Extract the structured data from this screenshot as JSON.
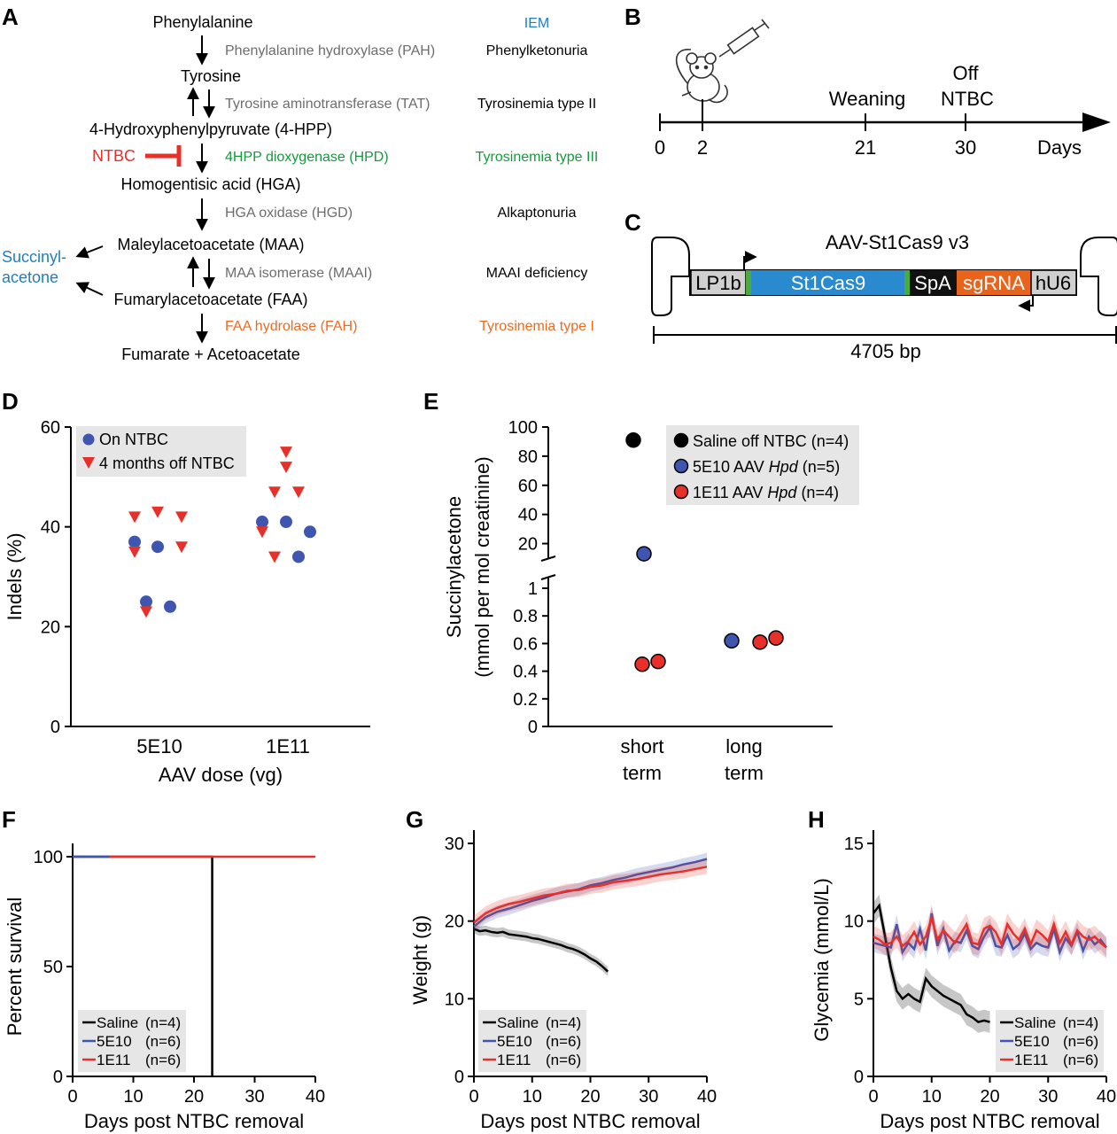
{
  "colors": {
    "blue": "#3f56b0",
    "red": "#e8302a",
    "black": "#000000",
    "gray_text": "#6d6d6d",
    "green": "#169a3c",
    "orange": "#ef6a1f",
    "iem_blue": "#1f7fc1",
    "st1cas9_blue": "#2a8ad0",
    "sgrna_orange": "#e8641c",
    "legend_bg": "#e6e6e6"
  },
  "panels": {
    "A": "A",
    "B": "B",
    "C": "C",
    "D": "D",
    "E": "E",
    "F": "F",
    "G": "G",
    "H": "H"
  },
  "pathway": {
    "iem_header": "IEM",
    "metabolites": {
      "phe": "Phenylalanine",
      "tyr": "Tyrosine",
      "hpp": "4-Hydroxyphenylpyruvate (4-HPP)",
      "hga": "Homogentisic acid (HGA)",
      "maa": "Maleylacetoacetate (MAA)",
      "faa": "Fumarylacetoacetate (FAA)",
      "fum": "Fumarate + Acetoacetate"
    },
    "enzymes": {
      "pah": "Phenylalanine hydroxylase (PAH)",
      "tat": "Tyrosine aminotransferase (TAT)",
      "hpd": "4HPP dioxygenase (HPD)",
      "hgd": "HGA oxidase (HGD)",
      "maai": "MAA isomerase (MAAI)",
      "fah": "FAA hydrolase (FAH)"
    },
    "diseases": {
      "pku": "Phenylketonuria",
      "tyr2": "Tyrosinemia type II",
      "tyr3": "Tyrosinemia type III",
      "alk": "Alkaptonuria",
      "maai": "MAAI deficiency",
      "tyr1": "Tyrosinemia type I"
    },
    "ntbc": "NTBC",
    "succinyl_1": "Succinyl-",
    "succinyl_2": "acetone"
  },
  "timeline": {
    "days_label": "Days",
    "ticks": [
      "0",
      "2",
      "21",
      "30"
    ],
    "weaning": "Weaning",
    "off_1": "Off",
    "off_2": "NTBC"
  },
  "construct": {
    "title": "AAV-St1Cas9 v3",
    "segments": {
      "lp1b": "LP1b",
      "st1cas9": "St1Cas9",
      "spa": "SpA",
      "sgrna": "sgRNA",
      "hu6": "hU6"
    },
    "length": "4705 bp"
  },
  "chart_data": [
    {
      "panel": "D",
      "type": "scatter",
      "xlabel": "AAV dose (vg)",
      "ylabel": "Indels (%)",
      "categories": [
        "5E10",
        "1E11"
      ],
      "ylim": [
        0,
        60
      ],
      "yticks": [
        "0",
        "20",
        "40",
        "60"
      ],
      "legend_position": "top-left",
      "series": [
        {
          "name": "On NTBC",
          "marker": "circle",
          "values": [
            [
              37,
              36,
              25,
              24
            ],
            [
              41,
              41,
              39,
              34
            ]
          ]
        },
        {
          "name": "4 months off NTBC",
          "marker": "triangle-down",
          "values": [
            [
              42,
              43,
              42,
              35,
              36,
              23
            ],
            [
              55,
              52,
              47,
              47,
              39,
              34
            ]
          ]
        }
      ]
    },
    {
      "panel": "E",
      "type": "scatter",
      "ylabel": "Succinylacetone",
      "ylabel2": "(mmol per mol creatinine)",
      "categories": [
        [
          "short",
          "term"
        ],
        [
          "long",
          "term"
        ]
      ],
      "y_axis_broken": true,
      "lower_ylim": [
        0,
        1
      ],
      "upper_ylim": [
        10,
        100
      ],
      "lower_yticks": [
        "0",
        "0.2",
        "0.4",
        "0.6",
        "0.8",
        "1"
      ],
      "upper_yticks": [
        "20",
        "40",
        "60",
        "80",
        "100"
      ],
      "legend_position": "top-right",
      "series": [
        {
          "name": "Saline off NTBC (n=4)",
          "label_prefix": "Saline off NTBC ",
          "label_suffix": "(n=4)",
          "italic": "",
          "color": "black",
          "values": [
            [
              91
            ],
            []
          ]
        },
        {
          "name": "5E10 AAV Hpd (n=5)",
          "label_prefix": "5E10 AAV ",
          "italic": "Hpd",
          "label_suffix": " (n=5)",
          "color": "blue",
          "values": [
            [
              13
            ],
            [
              0.62
            ]
          ]
        },
        {
          "name": "1E11 AAV Hpd (n=4)",
          "label_prefix": "1E11 AAV ",
          "italic": "Hpd",
          "label_suffix": " (n=4)",
          "color": "red",
          "values": [
            [
              0.45,
              0.47
            ],
            [
              0.61,
              0.64
            ]
          ]
        }
      ]
    },
    {
      "panel": "F",
      "type": "line",
      "xlabel": "Days post NTBC removal",
      "ylabel": "Percent survival",
      "xlim": [
        0,
        40
      ],
      "ylim": [
        0,
        100
      ],
      "xticks": [
        "0",
        "10",
        "20",
        "30",
        "40"
      ],
      "yticks": [
        "0",
        "50",
        "100"
      ],
      "legend_position": "bottom-left",
      "series": [
        {
          "name": "Saline",
          "n": "(n=4)",
          "color": "black",
          "x": [
            0,
            23,
            23
          ],
          "y": [
            100,
            100,
            0
          ]
        },
        {
          "name": "5E10",
          "n": "(n=6)",
          "color": "blue",
          "x": [
            0,
            6
          ],
          "y": [
            100,
            100
          ]
        },
        {
          "name": "1E11",
          "n": "(n=6)",
          "color": "red",
          "x": [
            6,
            40
          ],
          "y": [
            100,
            100
          ]
        }
      ]
    },
    {
      "panel": "G",
      "type": "line",
      "xlabel": "Days post NTBC removal",
      "ylabel": "Weight (g)",
      "xlim": [
        0,
        40
      ],
      "ylim": [
        0,
        30
      ],
      "xticks": [
        "0",
        "10",
        "20",
        "30",
        "40"
      ],
      "yticks": [
        "0",
        "10",
        "20",
        "30"
      ],
      "legend_position": "bottom-left",
      "series": [
        {
          "name": "Saline",
          "n": "(n=4)",
          "color": "black",
          "band": 0.6,
          "x": [
            0,
            1,
            2,
            3,
            4,
            5,
            6,
            7,
            8,
            9,
            10,
            11,
            12,
            13,
            14,
            15,
            16,
            17,
            18,
            19,
            20,
            21,
            22,
            23
          ],
          "y": [
            19.0,
            18.7,
            18.8,
            18.6,
            18.5,
            18.6,
            18.3,
            18.2,
            18.1,
            18.0,
            17.8,
            17.7,
            17.5,
            17.3,
            17.1,
            16.9,
            16.6,
            16.4,
            16.1,
            15.7,
            15.2,
            14.8,
            14.2,
            13.5
          ]
        },
        {
          "name": "5E10",
          "n": "(n=6)",
          "color": "blue",
          "band": 0.8,
          "x": [
            0,
            2,
            4,
            6,
            8,
            10,
            12,
            14,
            16,
            18,
            20,
            22,
            24,
            26,
            28,
            30,
            32,
            34,
            36,
            38,
            40
          ],
          "y": [
            19.3,
            20.5,
            21.2,
            21.6,
            22.1,
            22.6,
            23.0,
            23.5,
            23.8,
            24.1,
            24.6,
            24.9,
            25.3,
            25.6,
            26.0,
            26.3,
            26.6,
            26.9,
            27.3,
            27.6,
            28.0
          ]
        },
        {
          "name": "1E11",
          "n": "(n=6)",
          "color": "red",
          "band": 0.9,
          "x": [
            0,
            2,
            4,
            6,
            8,
            10,
            12,
            14,
            16,
            18,
            20,
            22,
            24,
            26,
            28,
            30,
            32,
            34,
            36,
            38,
            40
          ],
          "y": [
            19.8,
            21.0,
            21.7,
            22.2,
            22.5,
            22.9,
            23.3,
            23.5,
            23.9,
            24.0,
            24.4,
            24.6,
            25.0,
            25.2,
            25.4,
            25.7,
            26.0,
            26.2,
            26.4,
            26.7,
            27.0
          ]
        }
      ]
    },
    {
      "panel": "H",
      "type": "line",
      "xlabel": "Days post NTBC removal",
      "ylabel": "Glycemia (mmol/L)",
      "xlim": [
        0,
        40
      ],
      "ylim": [
        0,
        15
      ],
      "xticks": [
        "0",
        "10",
        "20",
        "30",
        "40"
      ],
      "yticks": [
        "0",
        "5",
        "10",
        "15"
      ],
      "legend_position": "bottom-right",
      "series": [
        {
          "name": "Saline",
          "n": "(n=4)",
          "color": "black",
          "band": 0.7,
          "x": [
            0,
            1,
            2,
            3,
            4,
            5,
            6,
            7,
            8,
            9,
            10,
            11,
            12,
            13,
            14,
            15,
            16,
            17,
            18,
            19,
            20
          ],
          "y": [
            10.5,
            11.0,
            9.0,
            7.0,
            5.5,
            5.0,
            5.3,
            5.0,
            4.8,
            6.3,
            5.8,
            5.5,
            5.2,
            5.0,
            4.8,
            4.6,
            4.0,
            3.8,
            3.5,
            3.6,
            3.5
          ]
        },
        {
          "name": "5E10",
          "n": "(n=6)",
          "color": "blue",
          "band": 0.6,
          "x": [
            0,
            1,
            2,
            3,
            4,
            5,
            6,
            7,
            8,
            9,
            10,
            11,
            12,
            13,
            14,
            15,
            16,
            17,
            18,
            19,
            20,
            21,
            22,
            23,
            24,
            25,
            26,
            27,
            28,
            29,
            30,
            31,
            32,
            33,
            34,
            35,
            36,
            37,
            38,
            39,
            40
          ],
          "y": [
            8.6,
            8.5,
            8.4,
            8.3,
            9.8,
            8.0,
            8.6,
            8.2,
            9.5,
            8.1,
            10.5,
            8.4,
            9.5,
            8.1,
            8.7,
            8.6,
            9.4,
            8.4,
            8.2,
            9.0,
            9.6,
            8.4,
            8.3,
            9.1,
            8.2,
            8.5,
            9.2,
            8.2,
            8.6,
            8.4,
            8.3,
            9.5,
            8.0,
            8.9,
            8.4,
            9.3,
            8.1,
            9.0,
            8.5,
            8.8,
            8.3
          ]
        },
        {
          "name": "1E11",
          "n": "(n=6)",
          "color": "red",
          "band": 0.7,
          "x": [
            0,
            1,
            2,
            3,
            4,
            5,
            6,
            7,
            8,
            9,
            10,
            11,
            12,
            13,
            14,
            15,
            16,
            17,
            18,
            19,
            20,
            21,
            22,
            23,
            24,
            25,
            26,
            27,
            28,
            29,
            30,
            31,
            32,
            33,
            34,
            35,
            36,
            37,
            38,
            39,
            40
          ],
          "y": [
            9.0,
            8.8,
            8.5,
            8.6,
            9.0,
            8.4,
            8.7,
            9.3,
            8.5,
            9.0,
            10.2,
            8.8,
            9.4,
            9.0,
            8.6,
            9.2,
            9.8,
            8.6,
            8.5,
            9.5,
            9.7,
            9.3,
            8.5,
            9.8,
            9.2,
            8.8,
            9.5,
            8.5,
            9.4,
            9.1,
            8.7,
            9.8,
            8.6,
            9.3,
            8.5,
            9.4,
            9.0,
            8.8,
            9.0,
            8.6,
            8.3
          ]
        }
      ]
    }
  ]
}
